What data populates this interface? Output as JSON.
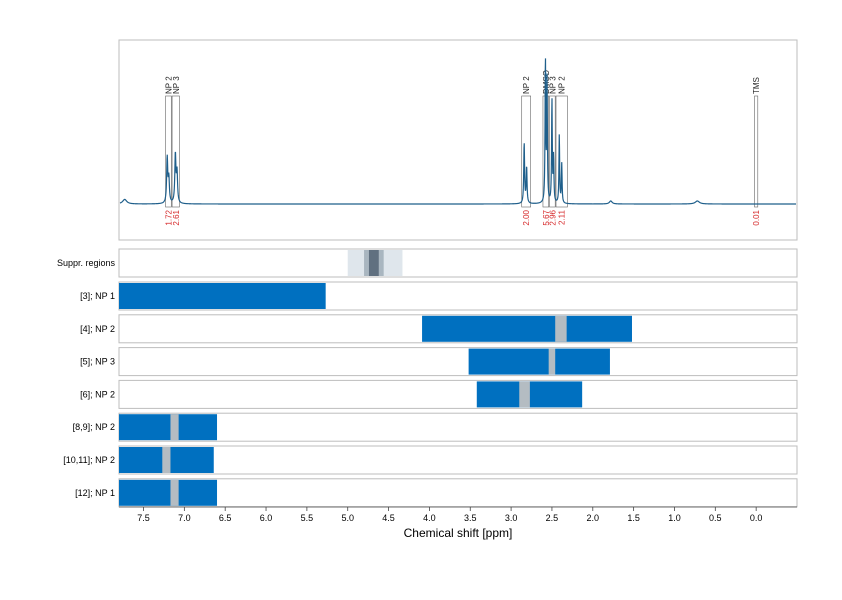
{
  "chart_data": {
    "type": "line",
    "xlabel": "Chemical shift [ppm]",
    "xlim": [
      7.8,
      -0.5
    ],
    "x_reversed": true,
    "x_ticks": [
      "7.5",
      "7.0",
      "6.5",
      "6.0",
      "5.5",
      "5.0",
      "4.5",
      "4.0",
      "3.5",
      "3.0",
      "2.5",
      "2.0",
      "1.5",
      "1.0",
      "0.5",
      "0.0"
    ],
    "grid": "vertical dotted",
    "colors": {
      "spectrum": "#1f5f8b",
      "bar": "#0070c0",
      "gap": "#b4bcc2",
      "integral": "#d62728",
      "annotation_box": "#666666",
      "panel_border": "#bdbdbd",
      "suppr_light": "#dfe6ec",
      "suppr_mid": "#a9b6c0",
      "suppr_dark": "#607080"
    },
    "spectrum_peaks": [
      {
        "ppm": 7.73,
        "height": 0.03,
        "width": 0.03
      },
      {
        "ppm": 7.21,
        "height": 0.3,
        "width": 0.008
      },
      {
        "ppm": 7.19,
        "height": 0.16,
        "width": 0.008
      },
      {
        "ppm": 7.11,
        "height": 0.32,
        "width": 0.008
      },
      {
        "ppm": 7.09,
        "height": 0.2,
        "width": 0.008
      },
      {
        "ppm": 2.84,
        "height": 0.4,
        "width": 0.006
      },
      {
        "ppm": 2.81,
        "height": 0.24,
        "width": 0.006
      },
      {
        "ppm": 2.58,
        "height": 0.95,
        "width": 0.005
      },
      {
        "ppm": 2.56,
        "height": 0.8,
        "width": 0.005
      },
      {
        "ppm": 2.5,
        "height": 0.68,
        "width": 0.005
      },
      {
        "ppm": 2.48,
        "height": 0.3,
        "width": 0.005
      },
      {
        "ppm": 2.41,
        "height": 0.45,
        "width": 0.005
      },
      {
        "ppm": 2.38,
        "height": 0.26,
        "width": 0.005
      },
      {
        "ppm": 1.78,
        "height": 0.02,
        "width": 0.02
      },
      {
        "ppm": 0.72,
        "height": 0.02,
        "width": 0.03
      }
    ],
    "annotations": [
      {
        "label": "NP 2",
        "from": 7.23,
        "to": 7.16,
        "integral": "1.72"
      },
      {
        "label": "NP 3",
        "from": 7.15,
        "to": 7.06,
        "integral": "2.61"
      },
      {
        "label": "NP 2",
        "from": 2.87,
        "to": 2.76,
        "integral": "2.00"
      },
      {
        "label": "DMSO",
        "from": 2.61,
        "to": 2.54,
        "integral": "5.67"
      },
      {
        "label": "NP 3",
        "from": 2.53,
        "to": 2.46,
        "integral": "2.96"
      },
      {
        "label": "NP 2",
        "from": 2.45,
        "to": 2.31,
        "integral": "2.11"
      },
      {
        "label": "TMS",
        "from": 0.02,
        "to": -0.02,
        "integral": "0.01"
      }
    ],
    "suppression_label": "Suppr. regions",
    "suppression_regions": [
      {
        "from": 5.0,
        "to": 4.33,
        "shade": "light"
      },
      {
        "from": 4.8,
        "to": 4.56,
        "shade": "mid"
      },
      {
        "from": 4.74,
        "to": 4.62,
        "shade": "dark"
      }
    ],
    "rows": [
      {
        "label": "[3]; NP 1",
        "from": 7.8,
        "to": 5.27,
        "gap": null
      },
      {
        "label": "[4]; NP 2",
        "from": 4.09,
        "to": 1.52,
        "gap": [
          2.46,
          2.32
        ]
      },
      {
        "label": "[5]; NP 3",
        "from": 3.52,
        "to": 1.79,
        "gap": [
          2.54,
          2.46
        ]
      },
      {
        "label": "[6]; NP 2",
        "from": 3.42,
        "to": 2.13,
        "gap": [
          2.9,
          2.77
        ]
      },
      {
        "label": "[8,9]; NP 2",
        "from": 7.8,
        "to": 6.6,
        "gap": [
          7.17,
          7.07
        ]
      },
      {
        "label": "[10,11]; NP 2",
        "from": 7.8,
        "to": 6.64,
        "gap": [
          7.27,
          7.17
        ]
      },
      {
        "label": "[12]; NP 1",
        "from": 7.8,
        "to": 6.6,
        "gap": [
          7.17,
          7.07
        ]
      }
    ]
  }
}
